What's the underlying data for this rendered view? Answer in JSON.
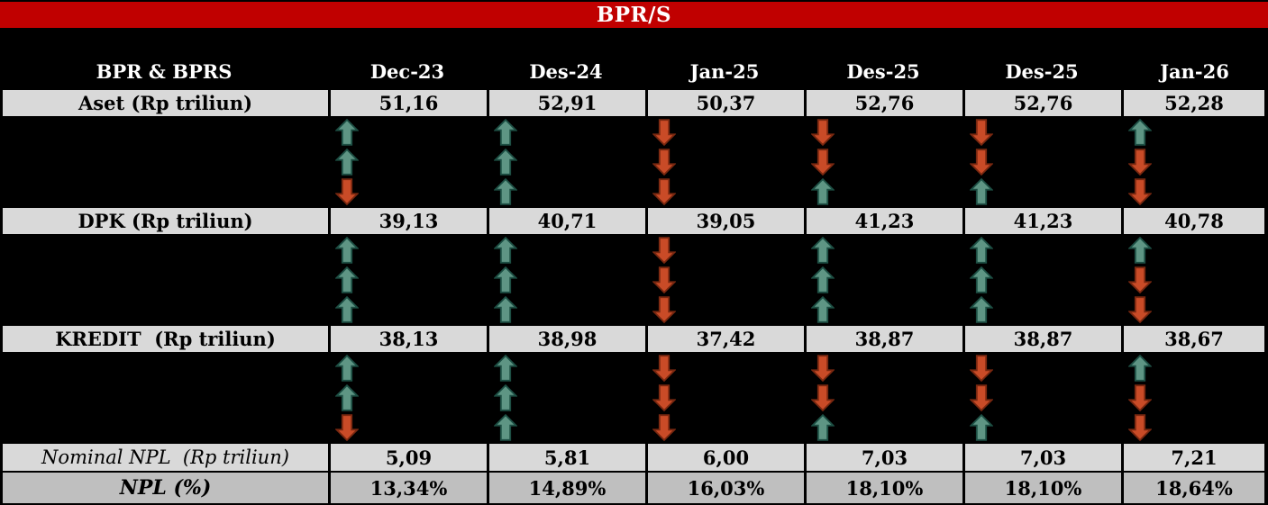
{
  "title": "BPR/S",
  "colors": {
    "title_bg": "#C00000",
    "page_bg": "#000000",
    "row_light": "#D9D9D9",
    "row_dark": "#BFBFBF",
    "arrow_up_fill": "#5E9584",
    "arrow_up_stroke": "#1D4F44",
    "arrow_down_fill": "#C94B27",
    "arrow_down_stroke": "#7A2810"
  },
  "header": {
    "label": "BPR & BPRS",
    "columns": [
      "Dec-23",
      "Des-24",
      "Jan-25",
      "Des-25",
      "Des-25",
      "Jan-26"
    ]
  },
  "sections": [
    {
      "id": "aset",
      "label": "Aset (Rp triliun)",
      "values": [
        "51,16",
        "52,91",
        "50,37",
        "52,76",
        "52,76",
        "52,28"
      ],
      "arrow_rows": [
        [
          "up",
          "up",
          "down",
          "down",
          "down",
          "up"
        ],
        [
          "up",
          "up",
          "down",
          "down",
          "down",
          "down"
        ],
        [
          "down",
          "up",
          "down",
          "up",
          "up",
          "down"
        ]
      ]
    },
    {
      "id": "dpk",
      "label": "DPK (Rp triliun)",
      "values": [
        "39,13",
        "40,71",
        "39,05",
        "41,23",
        "41,23",
        "40,78"
      ],
      "arrow_rows": [
        [
          "up",
          "up",
          "down",
          "up",
          "up",
          "up"
        ],
        [
          "up",
          "up",
          "down",
          "up",
          "up",
          "down"
        ],
        [
          "up",
          "up",
          "down",
          "up",
          "up",
          "down"
        ]
      ]
    },
    {
      "id": "kredit",
      "label": "KREDIT  (Rp triliun)",
      "values": [
        "38,13",
        "38,98",
        "37,42",
        "38,87",
        "38,87",
        "38,67"
      ],
      "arrow_rows": [
        [
          "up",
          "up",
          "down",
          "down",
          "down",
          "up"
        ],
        [
          "up",
          "up",
          "down",
          "down",
          "down",
          "down"
        ],
        [
          "down",
          "up",
          "down",
          "up",
          "up",
          "down"
        ]
      ]
    }
  ],
  "footer_rows": [
    {
      "id": "nominal-npl",
      "label": "Nominal NPL  (Rp triliun)",
      "values": [
        "5,09",
        "5,81",
        "6,00",
        "7,03",
        "7,03",
        "7,21"
      ]
    },
    {
      "id": "npl-pct",
      "label": "NPL (%)",
      "values": [
        "13,34%",
        "14,89%",
        "16,03%",
        "18,10%",
        "18,10%",
        "18,64%"
      ]
    }
  ],
  "chart_data": {
    "type": "table",
    "title": "BPR/S",
    "row_header": "BPR & BPRS",
    "columns": [
      "Dec-23",
      "Des-24",
      "Jan-25",
      "Des-25",
      "Des-25",
      "Jan-26"
    ],
    "rows": [
      {
        "label": "Aset (Rp triliun)",
        "values": [
          51.16,
          52.91,
          50.37,
          52.76,
          52.76,
          52.28
        ]
      },
      {
        "label": "DPK (Rp triliun)",
        "values": [
          39.13,
          40.71,
          39.05,
          41.23,
          41.23,
          40.78
        ]
      },
      {
        "label": "KREDIT (Rp triliun)",
        "values": [
          38.13,
          38.98,
          37.42,
          38.87,
          38.87,
          38.67
        ]
      },
      {
        "label": "Nominal NPL (Rp triliun)",
        "values": [
          5.09,
          5.81,
          6.0,
          7.03,
          7.03,
          7.21
        ]
      },
      {
        "label": "NPL (%)",
        "values": [
          13.34,
          14.89,
          16.03,
          18.1,
          18.1,
          18.64
        ]
      }
    ],
    "trend_arrows_per_section": {
      "aset": [
        [
          "up",
          "up",
          "down",
          "down",
          "down",
          "up"
        ],
        [
          "up",
          "up",
          "down",
          "down",
          "down",
          "down"
        ],
        [
          "down",
          "up",
          "down",
          "up",
          "up",
          "down"
        ]
      ],
      "dpk": [
        [
          "up",
          "up",
          "down",
          "up",
          "up",
          "up"
        ],
        [
          "up",
          "up",
          "down",
          "up",
          "up",
          "down"
        ],
        [
          "up",
          "up",
          "down",
          "up",
          "up",
          "down"
        ]
      ],
      "kredit": [
        [
          "up",
          "up",
          "down",
          "down",
          "down",
          "up"
        ],
        [
          "up",
          "up",
          "down",
          "down",
          "down",
          "down"
        ],
        [
          "down",
          "up",
          "down",
          "up",
          "up",
          "down"
        ]
      ]
    },
    "legend": "green up arrow = increase, red down arrow = decrease"
  }
}
